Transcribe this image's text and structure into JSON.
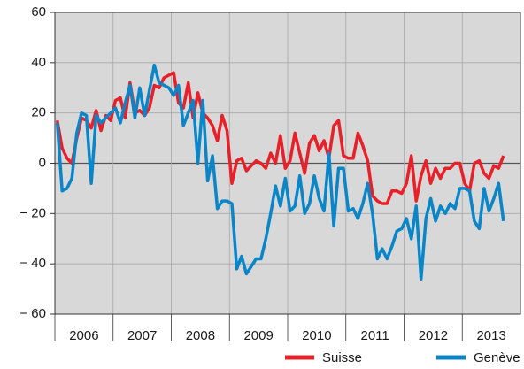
{
  "chart_data": {
    "type": "line",
    "categories": [
      null,
      null,
      null,
      null,
      null,
      null,
      "2006",
      null,
      null,
      null,
      null,
      null,
      null,
      null,
      null,
      null,
      null,
      null,
      "2007",
      null,
      null,
      null,
      null,
      null,
      null,
      null,
      null,
      null,
      null,
      null,
      "2008",
      null,
      null,
      null,
      null,
      null,
      null,
      null,
      null,
      null,
      null,
      null,
      "2009",
      null,
      null,
      null,
      null,
      null,
      null,
      null,
      null,
      null,
      null,
      null,
      "2010",
      null,
      null,
      null,
      null,
      null,
      null,
      null,
      null,
      null,
      null,
      null,
      "2011",
      null,
      null,
      null,
      null,
      null,
      null,
      null,
      null,
      null,
      null,
      null,
      "2012",
      null,
      null,
      null,
      null,
      null,
      null,
      null,
      null,
      null,
      null,
      null,
      "2013",
      null,
      null
    ],
    "series": [
      {
        "name": "Suisse",
        "color": "#e8202a",
        "values": [
          17,
          6,
          2,
          0,
          10,
          18,
          17,
          14,
          21,
          13,
          19,
          17,
          25,
          26,
          18,
          32,
          20,
          21,
          19,
          22,
          31,
          30,
          34,
          35,
          36,
          24,
          22,
          32,
          18,
          28,
          20,
          18,
          15,
          9,
          19,
          13,
          -8,
          1,
          2,
          -3,
          -1,
          1,
          0,
          -2,
          4,
          0,
          11,
          -2,
          1,
          12,
          4,
          -4,
          8,
          11,
          5,
          9,
          2,
          15,
          17,
          3,
          2,
          2,
          12,
          7,
          1,
          -13,
          -15,
          -16,
          -16,
          -11,
          -11,
          -12,
          -8,
          3,
          -15,
          -5,
          1,
          -8,
          -2,
          -6,
          -2,
          -2,
          0,
          0,
          -8,
          -11,
          0,
          1,
          -4,
          -6,
          -1,
          -2,
          3
        ]
      },
      {
        "name": "Genève",
        "color": "#0a86c8",
        "values": [
          16,
          -11,
          -10,
          -6,
          12,
          20,
          19,
          -8,
          19,
          16,
          18,
          20,
          22,
          16,
          24,
          31,
          18,
          30,
          19,
          29,
          39,
          32,
          31,
          30,
          27,
          31,
          15,
          20,
          25,
          0,
          25,
          -7,
          3,
          -18,
          -15,
          -15,
          -16,
          -42,
          -37,
          -44,
          -41,
          -38,
          -38,
          -30,
          -20,
          -9,
          -17,
          -6,
          -19,
          -17,
          -5,
          -20,
          -16,
          -5,
          -14,
          -19,
          4,
          -25,
          -2,
          -2,
          -19,
          -18,
          -22,
          -16,
          -8,
          -20,
          -38,
          -34,
          -38,
          -33,
          -27,
          -26,
          -22,
          -30,
          -17,
          -46,
          -22,
          -14,
          -23,
          -17,
          -20,
          -16,
          -18,
          -10,
          -10,
          -11,
          -23,
          -26,
          -10,
          -19,
          -14,
          -8,
          -23
        ]
      }
    ],
    "ylim": [
      -60,
      60
    ],
    "yticks": [
      {
        "value": -60,
        "label": "− 60"
      },
      {
        "value": -40,
        "label": "− 40"
      },
      {
        "value": -20,
        "label": "− 20"
      },
      0,
      20,
      40,
      60
    ],
    "grid": true,
    "legend": "bottom-right"
  }
}
